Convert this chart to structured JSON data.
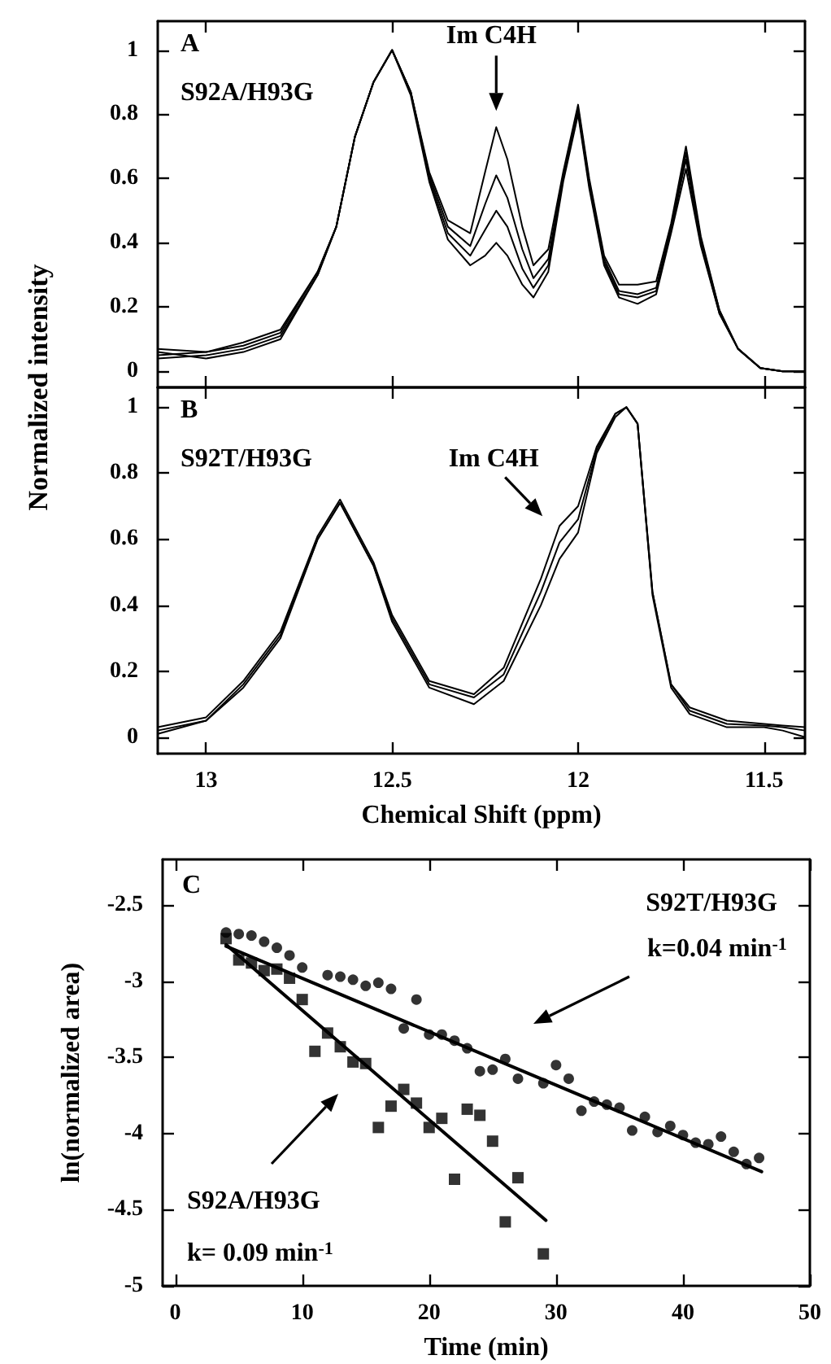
{
  "chart_data": [
    {
      "type": "line",
      "ylabel": "Normalized intensity",
      "xlim": [
        13.13,
        11.39
      ],
      "ylim": [
        -0.05,
        1.09
      ],
      "xticks": [
        13,
        12.5,
        12,
        11.5
      ],
      "yticks": [
        0,
        0.2,
        0.4,
        0.6,
        0.8,
        1
      ],
      "tick_labels": "y",
      "marker": "none",
      "line_style": "solid",
      "annotations": [
        "A",
        "S92A/H93G",
        {
          "text": "Im C4H",
          "x": 12.22,
          "y": 0.78
        }
      ],
      "x": [
        13.13,
        13.0,
        12.9,
        12.8,
        12.7,
        12.65,
        12.6,
        12.55,
        12.5,
        12.45,
        12.4,
        12.35,
        12.29,
        12.25,
        12.22,
        12.19,
        12.15,
        12.12,
        12.08,
        12.04,
        12.0,
        11.97,
        11.93,
        11.89,
        11.84,
        11.79,
        11.75,
        11.71,
        11.67,
        11.62,
        11.57,
        11.51,
        11.45,
        11.39
      ],
      "series": [
        {
          "color": "#000000",
          "values": [
            0.07,
            0.06,
            0.09,
            0.13,
            0.31,
            0.45,
            0.73,
            0.9,
            1.0,
            0.87,
            0.62,
            0.47,
            0.43,
            0.62,
            0.76,
            0.66,
            0.45,
            0.33,
            0.38,
            0.62,
            0.83,
            0.6,
            0.36,
            0.27,
            0.27,
            0.28,
            0.46,
            0.7,
            0.42,
            0.19,
            0.07,
            0.01,
            0.0,
            0.0
          ]
        },
        {
          "color": "#000000",
          "values": [
            0.05,
            0.06,
            0.08,
            0.12,
            0.31,
            0.45,
            0.73,
            0.9,
            1.0,
            0.87,
            0.61,
            0.45,
            0.39,
            0.52,
            0.61,
            0.54,
            0.38,
            0.29,
            0.35,
            0.61,
            0.82,
            0.59,
            0.35,
            0.25,
            0.24,
            0.26,
            0.45,
            0.68,
            0.41,
            0.19,
            0.07,
            0.01,
            0.0,
            0.0
          ]
        },
        {
          "color": "#000000",
          "values": [
            0.04,
            0.05,
            0.07,
            0.11,
            0.3,
            0.45,
            0.73,
            0.9,
            1.0,
            0.87,
            0.6,
            0.43,
            0.36,
            0.44,
            0.5,
            0.45,
            0.32,
            0.26,
            0.33,
            0.6,
            0.81,
            0.58,
            0.34,
            0.24,
            0.23,
            0.25,
            0.44,
            0.66,
            0.4,
            0.18,
            0.07,
            0.01,
            0.0,
            0.0
          ]
        },
        {
          "color": "#000000",
          "values": [
            0.06,
            0.04,
            0.06,
            0.1,
            0.3,
            0.45,
            0.73,
            0.9,
            1.0,
            0.86,
            0.59,
            0.41,
            0.33,
            0.36,
            0.4,
            0.36,
            0.27,
            0.23,
            0.31,
            0.59,
            0.8,
            0.57,
            0.33,
            0.23,
            0.21,
            0.24,
            0.43,
            0.63,
            0.39,
            0.18,
            0.07,
            0.01,
            0.0,
            0.0
          ]
        }
      ]
    },
    {
      "type": "line",
      "xlabel": "Chemical Shift (ppm)",
      "xlim": [
        13.13,
        11.39
      ],
      "ylim": [
        -0.05,
        1.06
      ],
      "xticks": [
        13,
        12.5,
        12,
        11.5
      ],
      "yticks": [
        0,
        0.2,
        0.4,
        0.6,
        0.8,
        1
      ],
      "marker": "none",
      "line_style": "solid",
      "annotations": [
        "B",
        "S92T/H93G",
        {
          "text": "Im C4H",
          "x": 12.03,
          "y": 0.64
        }
      ],
      "x": [
        13.13,
        13.0,
        12.9,
        12.8,
        12.7,
        12.64,
        12.55,
        12.5,
        12.4,
        12.28,
        12.2,
        12.1,
        12.05,
        12.0,
        11.95,
        11.9,
        11.87,
        11.84,
        11.8,
        11.75,
        11.7,
        11.6,
        11.5,
        11.45,
        11.39
      ],
      "series": [
        {
          "color": "#000000",
          "values": [
            0.03,
            0.06,
            0.17,
            0.32,
            0.61,
            0.72,
            0.53,
            0.37,
            0.17,
            0.13,
            0.21,
            0.48,
            0.64,
            0.7,
            0.88,
            0.98,
            1.0,
            0.95,
            0.44,
            0.16,
            0.09,
            0.05,
            0.04,
            0.035,
            0.03
          ]
        },
        {
          "color": "#000000",
          "values": [
            0.02,
            0.05,
            0.16,
            0.31,
            0.6,
            0.71,
            0.52,
            0.36,
            0.16,
            0.12,
            0.19,
            0.44,
            0.59,
            0.66,
            0.87,
            0.98,
            1.0,
            0.95,
            0.44,
            0.16,
            0.08,
            0.04,
            0.035,
            0.03,
            0.02
          ]
        },
        {
          "color": "#000000",
          "values": [
            0.01,
            0.05,
            0.15,
            0.3,
            0.6,
            0.71,
            0.52,
            0.35,
            0.15,
            0.1,
            0.17,
            0.4,
            0.54,
            0.62,
            0.86,
            0.97,
            1.0,
            0.95,
            0.43,
            0.15,
            0.07,
            0.03,
            0.03,
            0.02,
            0.0
          ]
        }
      ]
    },
    {
      "type": "scatter",
      "xlabel": "Time (min)",
      "ylabel": "ln(normalized area)",
      "xlim": [
        -1,
        50
      ],
      "ylim": [
        -5,
        -2.2
      ],
      "xticks": [
        0,
        10,
        20,
        30,
        40,
        50
      ],
      "yticks": [
        -5,
        -4.5,
        -4,
        -3.5,
        -3,
        -2.5
      ],
      "annotations": [
        "C",
        "S92T/H93G",
        "k=0.04 min$^{-1}$",
        "S92A/H93G",
        "k= 0.09 min$^{-1}$"
      ],
      "series": [
        {
          "type": "scatter",
          "marker": "circle",
          "color": "#000000",
          "x": [
            4,
            5,
            6,
            7,
            8,
            9,
            10,
            12,
            13,
            14,
            15,
            16,
            17,
            18,
            19,
            20,
            21,
            22,
            23,
            24,
            25,
            26,
            27,
            29,
            30,
            31,
            32,
            33,
            34,
            35,
            36,
            37,
            38,
            39,
            40,
            41,
            42,
            43,
            44,
            45,
            46
          ],
          "values": [
            -2.68,
            -2.69,
            -2.7,
            -2.74,
            -2.78,
            -2.83,
            -2.91,
            -2.96,
            -2.97,
            -2.99,
            -3.03,
            -3.01,
            -3.05,
            -3.31,
            -3.12,
            -3.35,
            -3.35,
            -3.39,
            -3.44,
            -3.59,
            -3.58,
            -3.51,
            -3.64,
            -3.67,
            -3.55,
            -3.64,
            -3.85,
            -3.79,
            -3.81,
            -3.83,
            -3.98,
            -3.89,
            -3.99,
            -3.95,
            -4.01,
            -4.06,
            -4.07,
            -4.02,
            -4.12,
            -4.2,
            -4.16
          ]
        },
        {
          "type": "scatter",
          "marker": "square",
          "color": "#000000",
          "x": [
            4,
            5,
            6,
            7,
            8,
            9,
            10,
            11,
            12,
            13,
            14,
            15,
            16,
            17,
            18,
            19,
            20,
            21,
            22,
            23,
            24,
            25,
            26,
            27,
            29
          ],
          "values": [
            -2.72,
            -2.86,
            -2.88,
            -2.93,
            -2.92,
            -2.98,
            -3.12,
            -3.46,
            -3.34,
            -3.43,
            -3.53,
            -3.54,
            -3.96,
            -3.82,
            -3.71,
            -3.8,
            -3.96,
            -3.9,
            -4.3,
            -3.84,
            -3.88,
            -4.05,
            -4.58,
            -4.29,
            -4.79
          ]
        },
        {
          "type": "line",
          "marker": "none",
          "line_style": "solid",
          "color": "#000000",
          "x": [
            4,
            46.2
          ],
          "values": [
            -2.77,
            -4.25
          ]
        },
        {
          "type": "line",
          "marker": "none",
          "line_style": "solid",
          "color": "#000000",
          "x": [
            4,
            29.2
          ],
          "values": [
            -2.76,
            -4.57
          ]
        }
      ]
    }
  ]
}
